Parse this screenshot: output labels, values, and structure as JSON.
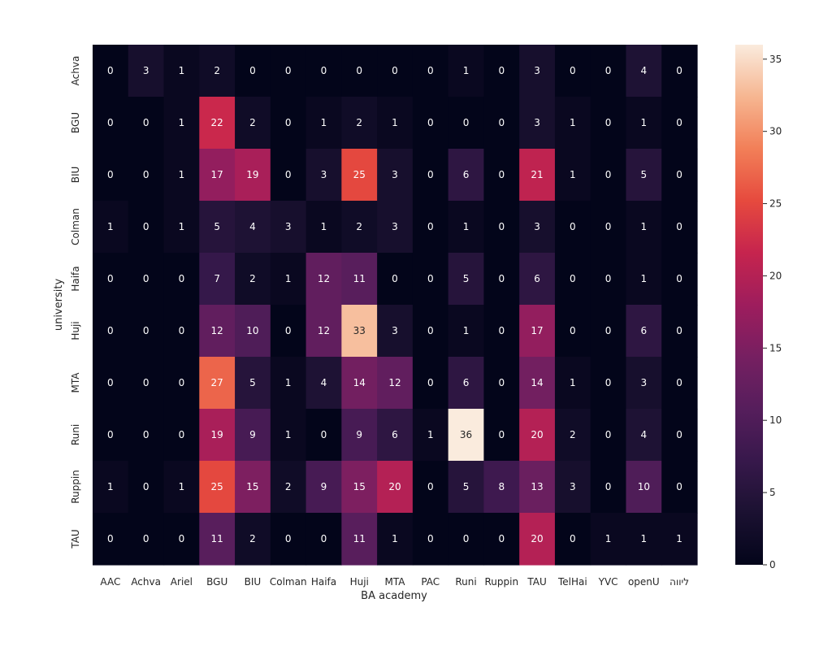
{
  "chart_data": {
    "type": "heatmap",
    "xlabel": "BA academy",
    "ylabel": "university",
    "x_categories": [
      "AAC",
      "Achva",
      "Ariel",
      "BGU",
      "BIU",
      "Colman",
      "Haifa",
      "Huji",
      "MTA",
      "PAC",
      "Runi",
      "Ruppin",
      "TAU",
      "TelHai",
      "YVC",
      "openU",
      "ליווה"
    ],
    "y_categories": [
      "Achva",
      "BGU",
      "BIU",
      "Colman",
      "Haifa",
      "Huji",
      "MTA",
      "Runi",
      "Ruppin",
      "TAU"
    ],
    "values": [
      [
        0,
        3,
        1,
        2,
        0,
        0,
        0,
        0,
        0,
        0,
        1,
        0,
        3,
        0,
        0,
        4,
        0
      ],
      [
        0,
        0,
        1,
        22,
        2,
        0,
        1,
        2,
        1,
        0,
        0,
        0,
        3,
        1,
        0,
        1,
        0
      ],
      [
        0,
        0,
        1,
        17,
        19,
        0,
        3,
        25,
        3,
        0,
        6,
        0,
        21,
        1,
        0,
        5,
        0
      ],
      [
        1,
        0,
        1,
        5,
        4,
        3,
        1,
        2,
        3,
        0,
        1,
        0,
        3,
        0,
        0,
        1,
        0
      ],
      [
        0,
        0,
        0,
        7,
        2,
        1,
        12,
        11,
        0,
        0,
        5,
        0,
        6,
        0,
        0,
        1,
        0
      ],
      [
        0,
        0,
        0,
        12,
        10,
        0,
        12,
        33,
        3,
        0,
        1,
        0,
        17,
        0,
        0,
        6,
        0
      ],
      [
        0,
        0,
        0,
        27,
        5,
        1,
        4,
        14,
        12,
        0,
        6,
        0,
        14,
        1,
        0,
        3,
        0
      ],
      [
        0,
        0,
        0,
        19,
        9,
        1,
        0,
        9,
        6,
        1,
        36,
        0,
        20,
        2,
        0,
        4,
        0
      ],
      [
        1,
        0,
        1,
        25,
        15,
        2,
        9,
        15,
        20,
        0,
        5,
        8,
        13,
        3,
        0,
        10,
        0
      ],
      [
        0,
        0,
        0,
        11,
        2,
        0,
        0,
        11,
        1,
        0,
        0,
        0,
        20,
        0,
        1,
        1,
        1
      ]
    ],
    "colorbar": {
      "range": [
        0,
        36
      ],
      "ticks": [
        0,
        5,
        10,
        15,
        20,
        25,
        30,
        35
      ],
      "colormap": "rocket"
    },
    "grid": false,
    "legend": "right"
  }
}
